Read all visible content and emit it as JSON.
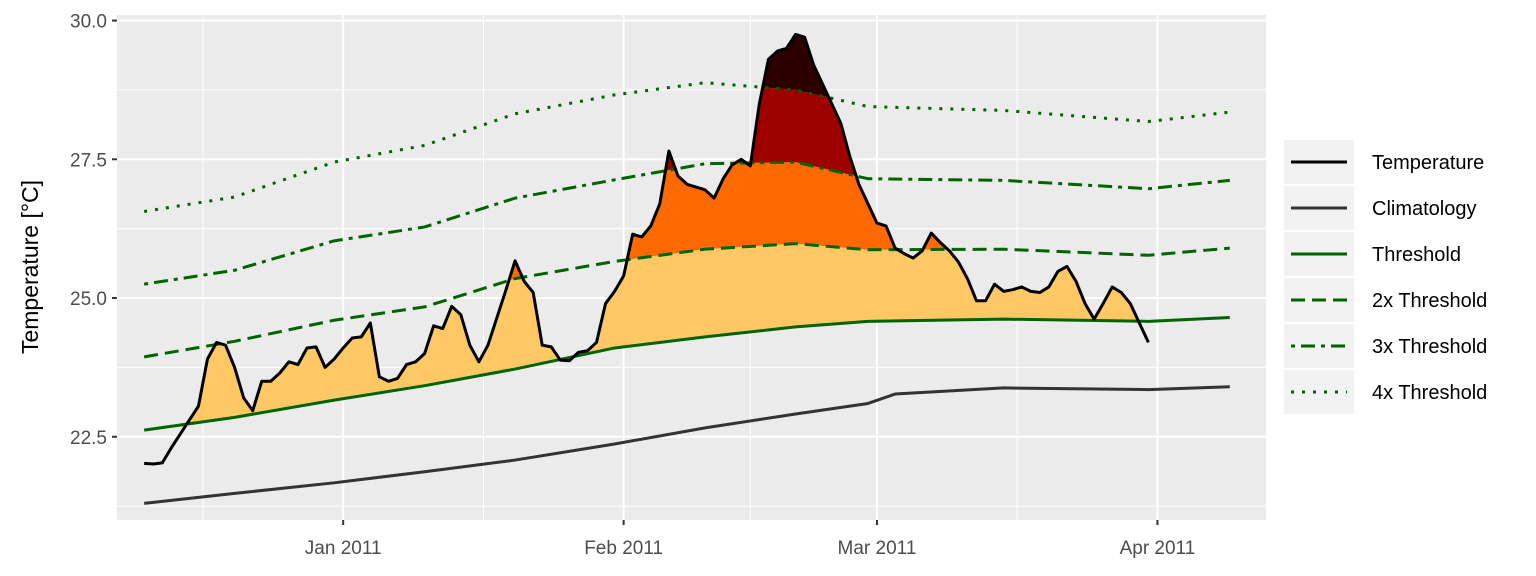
{
  "chart_data": {
    "type": "line",
    "title": "",
    "xlabel": "",
    "ylabel": "Temperature [°C]",
    "xlim": [
      "2010-12-07",
      "2011-04-13"
    ],
    "ylim": [
      21.0,
      30.1
    ],
    "grid": true,
    "legend_position": "right",
    "x_ticks": [
      "2011-01-01",
      "2011-02-01",
      "2011-03-01",
      "2011-04-01"
    ],
    "x_tick_labels": [
      "Jan 2011",
      "Feb 2011",
      "Mar 2011",
      "Apr 2011"
    ],
    "y_ticks": [
      22.5,
      25.0,
      27.5,
      30.0
    ],
    "y_tick_labels": [
      "22.5",
      "25.0",
      "27.5",
      "30.0"
    ],
    "fill_colors": {
      "above_threshold": "#fec965",
      "above_2x": "#ff6900",
      "above_3x": "#9e0000",
      "above_4x": "#2d0000"
    },
    "series": [
      {
        "name": "Temperature",
        "color": "#000000",
        "style": "solid",
        "points": [
          [
            "2010-12-10",
            22.02
          ],
          [
            "2010-12-11",
            22.01
          ],
          [
            "2010-12-12",
            22.03
          ],
          [
            "2010-12-13",
            22.3
          ],
          [
            "2010-12-14",
            22.55
          ],
          [
            "2010-12-16",
            23.05
          ],
          [
            "2010-12-17",
            23.9
          ],
          [
            "2010-12-18",
            24.2
          ],
          [
            "2010-12-19",
            24.15
          ],
          [
            "2010-12-20",
            23.75
          ],
          [
            "2010-12-21",
            23.2
          ],
          [
            "2010-12-22",
            22.97
          ],
          [
            "2010-12-23",
            23.5
          ],
          [
            "2010-12-24",
            23.5
          ],
          [
            "2010-12-25",
            23.65
          ],
          [
            "2010-12-26",
            23.85
          ],
          [
            "2010-12-27",
            23.8
          ],
          [
            "2010-12-28",
            24.1
          ],
          [
            "2010-12-29",
            24.12
          ],
          [
            "2010-12-30",
            23.75
          ],
          [
            "2010-12-31",
            23.9
          ],
          [
            "2011-01-01",
            24.1
          ],
          [
            "2011-01-02",
            24.28
          ],
          [
            "2011-01-03",
            24.3
          ],
          [
            "2011-01-04",
            24.55
          ],
          [
            "2011-01-05",
            23.58
          ],
          [
            "2011-01-06",
            23.5
          ],
          [
            "2011-01-07",
            23.55
          ],
          [
            "2011-01-08",
            23.8
          ],
          [
            "2011-01-09",
            23.85
          ],
          [
            "2011-01-10",
            24.0
          ],
          [
            "2011-01-11",
            24.5
          ],
          [
            "2011-01-12",
            24.45
          ],
          [
            "2011-01-13",
            24.85
          ],
          [
            "2011-01-14",
            24.7
          ],
          [
            "2011-01-15",
            24.15
          ],
          [
            "2011-01-16",
            23.85
          ],
          [
            "2011-01-17",
            24.15
          ],
          [
            "2011-01-18",
            24.65
          ],
          [
            "2011-01-19",
            25.15
          ],
          [
            "2011-01-20",
            25.67
          ],
          [
            "2011-01-21",
            25.3
          ],
          [
            "2011-01-22",
            25.1
          ],
          [
            "2011-01-23",
            24.15
          ],
          [
            "2011-01-24",
            24.12
          ],
          [
            "2011-01-25",
            23.88
          ],
          [
            "2011-01-26",
            23.87
          ],
          [
            "2011-01-27",
            24.02
          ],
          [
            "2011-01-28",
            24.05
          ],
          [
            "2011-01-29",
            24.2
          ],
          [
            "2011-01-30",
            24.9
          ],
          [
            "2011-01-31",
            25.12
          ],
          [
            "2011-02-01",
            25.4
          ],
          [
            "2011-02-02",
            26.15
          ],
          [
            "2011-02-03",
            26.1
          ],
          [
            "2011-02-04",
            26.3
          ],
          [
            "2011-02-05",
            26.7
          ],
          [
            "2011-02-06",
            27.65
          ],
          [
            "2011-02-07",
            27.2
          ],
          [
            "2011-02-08",
            27.05
          ],
          [
            "2011-02-09",
            27.0
          ],
          [
            "2011-02-10",
            26.95
          ],
          [
            "2011-02-11",
            26.8
          ],
          [
            "2011-02-12",
            27.15
          ],
          [
            "2011-02-13",
            27.4
          ],
          [
            "2011-02-14",
            27.5
          ],
          [
            "2011-02-15",
            27.38
          ],
          [
            "2011-02-16",
            28.5
          ],
          [
            "2011-02-17",
            29.3
          ],
          [
            "2011-02-18",
            29.45
          ],
          [
            "2011-02-19",
            29.5
          ],
          [
            "2011-02-20",
            29.75
          ],
          [
            "2011-02-21",
            29.7
          ],
          [
            "2011-02-22",
            29.2
          ],
          [
            "2011-02-23",
            28.85
          ],
          [
            "2011-02-24",
            28.5
          ],
          [
            "2011-02-25",
            28.15
          ],
          [
            "2011-02-26",
            27.55
          ],
          [
            "2011-02-27",
            27.05
          ],
          [
            "2011-02-28",
            26.7
          ],
          [
            "2011-03-01",
            26.35
          ],
          [
            "2011-03-02",
            26.3
          ],
          [
            "2011-03-03",
            25.9
          ],
          [
            "2011-03-04",
            25.8
          ],
          [
            "2011-03-05",
            25.72
          ],
          [
            "2011-03-06",
            25.85
          ],
          [
            "2011-03-07",
            26.17
          ],
          [
            "2011-03-08",
            26.0
          ],
          [
            "2011-03-09",
            25.85
          ],
          [
            "2011-03-10",
            25.65
          ],
          [
            "2011-03-11",
            25.35
          ],
          [
            "2011-03-12",
            24.95
          ],
          [
            "2011-03-13",
            24.95
          ],
          [
            "2011-03-14",
            25.25
          ],
          [
            "2011-03-15",
            25.12
          ],
          [
            "2011-03-16",
            25.15
          ],
          [
            "2011-03-17",
            25.2
          ],
          [
            "2011-03-18",
            25.12
          ],
          [
            "2011-03-19",
            25.1
          ],
          [
            "2011-03-20",
            25.2
          ],
          [
            "2011-03-21",
            25.48
          ],
          [
            "2011-03-22",
            25.57
          ],
          [
            "2011-03-23",
            25.3
          ],
          [
            "2011-03-24",
            24.9
          ],
          [
            "2011-03-25",
            24.62
          ],
          [
            "2011-03-26",
            24.9
          ],
          [
            "2011-03-27",
            25.2
          ],
          [
            "2011-03-28",
            25.1
          ],
          [
            "2011-03-29",
            24.9
          ],
          [
            "2011-03-30",
            24.55
          ],
          [
            "2011-03-31",
            24.2
          ]
        ]
      },
      {
        "name": "Climatology",
        "color": "#333333",
        "style": "solid",
        "points": [
          [
            "2010-12-10",
            21.3
          ],
          [
            "2010-12-20",
            21.48
          ],
          [
            "2010-12-31",
            21.67
          ],
          [
            "2011-01-10",
            21.87
          ],
          [
            "2011-01-20",
            22.08
          ],
          [
            "2011-01-31",
            22.37
          ],
          [
            "2011-02-10",
            22.66
          ],
          [
            "2011-02-20",
            22.91
          ],
          [
            "2011-02-28",
            23.1
          ],
          [
            "2011-03-03",
            23.27
          ],
          [
            "2011-03-15",
            23.38
          ],
          [
            "2011-03-31",
            23.35
          ],
          [
            "2011-04-09",
            23.4
          ]
        ]
      },
      {
        "name": "Threshold",
        "color": "#006400",
        "style": "solid",
        "points": [
          [
            "2010-12-10",
            22.62
          ],
          [
            "2010-12-20",
            22.85
          ],
          [
            "2010-12-31",
            23.16
          ],
          [
            "2011-01-10",
            23.42
          ],
          [
            "2011-01-20",
            23.72
          ],
          [
            "2011-01-31",
            24.1
          ],
          [
            "2011-02-10",
            24.3
          ],
          [
            "2011-02-20",
            24.48
          ],
          [
            "2011-02-28",
            24.58
          ],
          [
            "2011-03-15",
            24.62
          ],
          [
            "2011-03-31",
            24.58
          ],
          [
            "2011-04-09",
            24.65
          ]
        ]
      },
      {
        "name": "2x Threshold",
        "color": "#006400",
        "style": "dashed",
        "points": [
          [
            "2010-12-10",
            23.94
          ],
          [
            "2010-12-20",
            24.22
          ],
          [
            "2010-12-31",
            24.6
          ],
          [
            "2011-01-10",
            24.84
          ],
          [
            "2011-01-20",
            25.35
          ],
          [
            "2011-01-31",
            25.66
          ],
          [
            "2011-02-10",
            25.88
          ],
          [
            "2011-02-20",
            25.98
          ],
          [
            "2011-02-28",
            25.87
          ],
          [
            "2011-03-15",
            25.88
          ],
          [
            "2011-03-31",
            25.77
          ],
          [
            "2011-04-09",
            25.9
          ]
        ]
      },
      {
        "name": "3x Threshold",
        "color": "#006400",
        "style": "dotdash",
        "points": [
          [
            "2010-12-10",
            25.25
          ],
          [
            "2010-12-20",
            25.5
          ],
          [
            "2010-12-31",
            26.03
          ],
          [
            "2011-01-10",
            26.28
          ],
          [
            "2011-01-20",
            26.8
          ],
          [
            "2011-01-31",
            27.13
          ],
          [
            "2011-02-10",
            27.42
          ],
          [
            "2011-02-20",
            27.45
          ],
          [
            "2011-02-28",
            27.15
          ],
          [
            "2011-03-15",
            27.12
          ],
          [
            "2011-03-31",
            26.97
          ],
          [
            "2011-04-09",
            27.12
          ]
        ]
      },
      {
        "name": "4x Threshold",
        "color": "#006400",
        "style": "dotted",
        "points": [
          [
            "2010-12-10",
            26.56
          ],
          [
            "2010-12-20",
            26.82
          ],
          [
            "2010-12-31",
            27.45
          ],
          [
            "2011-01-10",
            27.75
          ],
          [
            "2011-01-20",
            28.32
          ],
          [
            "2011-01-31",
            28.66
          ],
          [
            "2011-02-10",
            28.88
          ],
          [
            "2011-02-20",
            28.75
          ],
          [
            "2011-02-28",
            28.45
          ],
          [
            "2011-03-15",
            28.38
          ],
          [
            "2011-03-31",
            28.18
          ],
          [
            "2011-04-09",
            28.35
          ]
        ]
      }
    ]
  }
}
